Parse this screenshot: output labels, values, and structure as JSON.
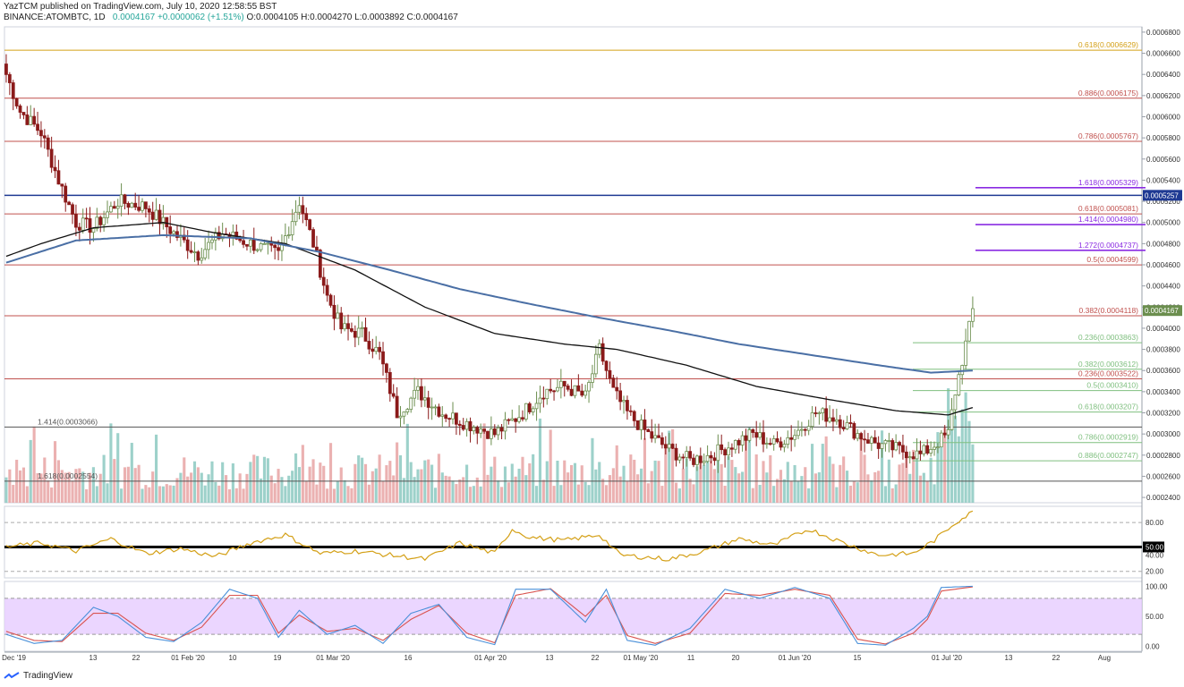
{
  "header": {
    "publisher": "YazTCM published on TradingView.com, July 10, 2020 12:58:55 BST",
    "symbol": "BINANCE:ATOMBTC, 1D",
    "last": "0.0004167",
    "change": "+0.0000062 (+1.51%)",
    "ohlc": "O:0.0004105 H:0.0004270 L:0.0003892 C:0.0004167"
  },
  "footer": {
    "brand": "TradingView"
  },
  "colors": {
    "bull": "#6b8e4e",
    "bear": "#8b1a1a",
    "ma_fast": "#111111",
    "ma_slow": "#4a6fa5",
    "rsi": "#d4a017",
    "stoch_k": "#4a90d9",
    "stoch_d": "#d9534f",
    "band": "#e6ccff",
    "fib_gold": "#d4a017",
    "fib_red": "#c0504d",
    "fib_green": "#7fbf7f",
    "fib_purple": "#8a2be2"
  },
  "chart_data": [
    {
      "type": "candlestick",
      "panel": "price",
      "y_axis_ticks": [
        "0.0006800",
        "0.0006600",
        "0.0006400",
        "0.0006200",
        "0.0006000",
        "0.0005800",
        "0.0005600",
        "0.0005400",
        "0.0005200",
        "0.0005000",
        "0.0004800",
        "0.0004600",
        "0.0004400",
        "0.0004200",
        "0.0004000",
        "0.0003800",
        "0.0003600",
        "0.0003400",
        "0.0003200",
        "0.0003000",
        "0.0002800",
        "0.0002600",
        "0.0002400"
      ],
      "ylim": [
        0.000235,
        0.000685
      ],
      "x_axis_labels": [
        "01 Dec '19",
        "13",
        "22",
        "01 Feb '20",
        "10",
        "19",
        "01 Mar '20",
        "16",
        "01 Apr '20",
        "13",
        "22",
        "01 May '20",
        "11",
        "20",
        "01 Jun '20",
        "15",
        "01 Jul '20",
        "13",
        "22",
        "Aug"
      ],
      "price_badges": [
        "0.0005257",
        "0.0004167"
      ],
      "fib_levels": [
        {
          "label": "0.618(0.0006629)",
          "value": 0.0006629,
          "color": "gold"
        },
        {
          "label": "0.886(0.0006175)",
          "value": 0.0006175,
          "color": "red"
        },
        {
          "label": "0.786(0.0005767)",
          "value": 0.0005767,
          "color": "red"
        },
        {
          "label": "1.618(0.0005329)",
          "value": 0.0005329,
          "color": "purple"
        },
        {
          "label": "0.618(0.0005081)",
          "value": 0.0005081,
          "color": "red"
        },
        {
          "label": "1.414(0.0004980)",
          "value": 0.000498,
          "color": "purple"
        },
        {
          "label": "1.272(0.0004737)",
          "value": 0.0004737,
          "color": "purple"
        },
        {
          "label": "0.5(0.0004599)",
          "value": 0.0004599,
          "color": "red"
        },
        {
          "label": "0.382(0.0004118)",
          "value": 0.0004118,
          "color": "red"
        },
        {
          "label": "0.236(0.0003863)",
          "value": 0.0003863,
          "color": "green"
        },
        {
          "label": "0.382(0.0003612)",
          "value": 0.0003612,
          "color": "green"
        },
        {
          "label": "0.236(0.0003522)",
          "value": 0.0003522,
          "color": "red"
        },
        {
          "label": "0.5(0.0003410)",
          "value": 0.000341,
          "color": "green"
        },
        {
          "label": "0.618(0.0003207)",
          "value": 0.0003207,
          "color": "green"
        },
        {
          "label": "1.414(0.0003066)",
          "value": 0.0003066,
          "color": "dark"
        },
        {
          "label": "0.786(0.0002919)",
          "value": 0.0002919,
          "color": "green"
        },
        {
          "label": "0.886(0.0002747)",
          "value": 0.0002747,
          "color": "green"
        },
        {
          "label": "1.618(0.0002554)",
          "value": 0.0002554,
          "color": "dark"
        }
      ],
      "close_anchors": [
        [
          0,
          0.00064
        ],
        [
          4,
          0.000605
        ],
        [
          10,
          0.000585
        ],
        [
          15,
          0.00054
        ],
        [
          20,
          0.0005
        ],
        [
          25,
          0.000495
        ],
        [
          32,
          0.00052
        ],
        [
          40,
          0.000515
        ],
        [
          48,
          0.00049
        ],
        [
          55,
          0.00047
        ],
        [
          62,
          0.00049
        ],
        [
          70,
          0.00048
        ],
        [
          78,
          0.00047
        ],
        [
          84,
          0.00052
        ],
        [
          88,
          0.00048
        ],
        [
          92,
          0.00043
        ],
        [
          96,
          0.0004
        ],
        [
          102,
          0.000395
        ],
        [
          107,
          0.000375
        ],
        [
          112,
          0.00032
        ],
        [
          118,
          0.00034
        ],
        [
          125,
          0.00032
        ],
        [
          132,
          0.00031
        ],
        [
          140,
          0.0003
        ],
        [
          148,
          0.00032
        ],
        [
          154,
          0.00034
        ],
        [
          160,
          0.000345
        ],
        [
          166,
          0.000335
        ],
        [
          170,
          0.00038
        ],
        [
          174,
          0.00034
        ],
        [
          178,
          0.00032
        ],
        [
          184,
          0.0003
        ],
        [
          190,
          0.000285
        ],
        [
          196,
          0.000275
        ],
        [
          202,
          0.00028
        ],
        [
          208,
          0.00029
        ],
        [
          214,
          0.0003
        ],
        [
          220,
          0.00029
        ],
        [
          226,
          0.0003
        ],
        [
          232,
          0.00032
        ],
        [
          238,
          0.000315
        ],
        [
          244,
          0.0003
        ],
        [
          250,
          0.00029
        ],
        [
          256,
          0.000285
        ],
        [
          262,
          0.00028
        ],
        [
          266,
          0.00029
        ],
        [
          270,
          0.0003
        ],
        [
          272,
          0.00034
        ],
        [
          274,
          0.00037
        ],
        [
          276,
          0.0004
        ],
        [
          277,
          0.000417
        ]
      ],
      "n_candles": 278,
      "moving_averages": [
        {
          "kind": "fast",
          "points": [
            [
              0,
              0.000468
            ],
            [
              10,
              0.00048
            ],
            [
              25,
              0.000495
            ],
            [
              45,
              0.0005
            ],
            [
              60,
              0.00049
            ],
            [
              80,
              0.00048
            ],
            [
              100,
              0.000455
            ],
            [
              120,
              0.00042
            ],
            [
              140,
              0.000395
            ],
            [
              160,
              0.000385
            ],
            [
              175,
              0.00038
            ],
            [
              195,
              0.000365
            ],
            [
              215,
              0.000345
            ],
            [
              235,
              0.000333
            ],
            [
              255,
              0.000322
            ],
            [
              270,
              0.000318
            ],
            [
              277,
              0.000325
            ]
          ]
        },
        {
          "kind": "slow",
          "points": [
            [
              0,
              0.000462
            ],
            [
              20,
              0.000483
            ],
            [
              45,
              0.000488
            ],
            [
              70,
              0.000485
            ],
            [
              90,
              0.000472
            ],
            [
              110,
              0.000455
            ],
            [
              130,
              0.000437
            ],
            [
              150,
              0.000423
            ],
            [
              170,
              0.00041
            ],
            [
              190,
              0.000398
            ],
            [
              210,
              0.000385
            ],
            [
              230,
              0.000375
            ],
            [
              250,
              0.000365
            ],
            [
              265,
              0.000358
            ],
            [
              277,
              0.00036
            ]
          ]
        }
      ]
    },
    {
      "type": "line",
      "panel": "rsi",
      "y_axis_ticks": [
        "80.00",
        "50.00",
        "40.00",
        "20.00"
      ],
      "ylim": [
        12,
        100
      ],
      "levels": [
        80,
        50,
        20
      ],
      "anchors": [
        [
          0,
          50
        ],
        [
          10,
          55
        ],
        [
          20,
          45
        ],
        [
          30,
          60
        ],
        [
          40,
          42
        ],
        [
          50,
          48
        ],
        [
          60,
          38
        ],
        [
          70,
          55
        ],
        [
          80,
          65
        ],
        [
          90,
          42
        ],
        [
          100,
          45
        ],
        [
          110,
          40
        ],
        [
          120,
          35
        ],
        [
          130,
          55
        ],
        [
          140,
          42
        ],
        [
          145,
          72
        ],
        [
          150,
          62
        ],
        [
          160,
          58
        ],
        [
          170,
          65
        ],
        [
          176,
          40
        ],
        [
          190,
          35
        ],
        [
          200,
          45
        ],
        [
          210,
          60
        ],
        [
          220,
          52
        ],
        [
          230,
          72
        ],
        [
          240,
          55
        ],
        [
          250,
          40
        ],
        [
          260,
          42
        ],
        [
          266,
          58
        ],
        [
          272,
          80
        ],
        [
          277,
          93
        ]
      ]
    },
    {
      "type": "line",
      "panel": "stoch_rsi",
      "y_axis_ticks": [
        "100.00",
        "50.00",
        "0.00"
      ],
      "ylim": [
        -8,
        108
      ],
      "band": [
        20,
        80
      ],
      "k_anchors": [
        [
          0,
          20
        ],
        [
          8,
          5
        ],
        [
          16,
          10
        ],
        [
          25,
          65
        ],
        [
          32,
          50
        ],
        [
          40,
          15
        ],
        [
          48,
          8
        ],
        [
          56,
          40
        ],
        [
          64,
          95
        ],
        [
          72,
          80
        ],
        [
          78,
          15
        ],
        [
          84,
          60
        ],
        [
          92,
          20
        ],
        [
          100,
          35
        ],
        [
          108,
          5
        ],
        [
          116,
          55
        ],
        [
          124,
          70
        ],
        [
          132,
          15
        ],
        [
          140,
          3
        ],
        [
          146,
          95
        ],
        [
          156,
          95
        ],
        [
          166,
          40
        ],
        [
          172,
          95
        ],
        [
          178,
          10
        ],
        [
          186,
          2
        ],
        [
          196,
          30
        ],
        [
          206,
          95
        ],
        [
          216,
          80
        ],
        [
          226,
          98
        ],
        [
          236,
          80
        ],
        [
          244,
          5
        ],
        [
          252,
          2
        ],
        [
          260,
          30
        ],
        [
          264,
          50
        ],
        [
          268,
          98
        ],
        [
          277,
          100
        ]
      ],
      "d_anchors": [
        [
          0,
          25
        ],
        [
          8,
          10
        ],
        [
          16,
          8
        ],
        [
          25,
          55
        ],
        [
          32,
          55
        ],
        [
          40,
          22
        ],
        [
          48,
          10
        ],
        [
          56,
          32
        ],
        [
          64,
          85
        ],
        [
          72,
          85
        ],
        [
          78,
          22
        ],
        [
          84,
          52
        ],
        [
          92,
          25
        ],
        [
          100,
          30
        ],
        [
          108,
          10
        ],
        [
          116,
          45
        ],
        [
          124,
          68
        ],
        [
          132,
          22
        ],
        [
          140,
          6
        ],
        [
          146,
          85
        ],
        [
          156,
          96
        ],
        [
          166,
          50
        ],
        [
          172,
          85
        ],
        [
          178,
          18
        ],
        [
          186,
          5
        ],
        [
          196,
          22
        ],
        [
          206,
          88
        ],
        [
          216,
          85
        ],
        [
          226,
          95
        ],
        [
          236,
          85
        ],
        [
          244,
          12
        ],
        [
          252,
          4
        ],
        [
          260,
          22
        ],
        [
          264,
          45
        ],
        [
          268,
          92
        ],
        [
          277,
          99
        ]
      ]
    }
  ]
}
